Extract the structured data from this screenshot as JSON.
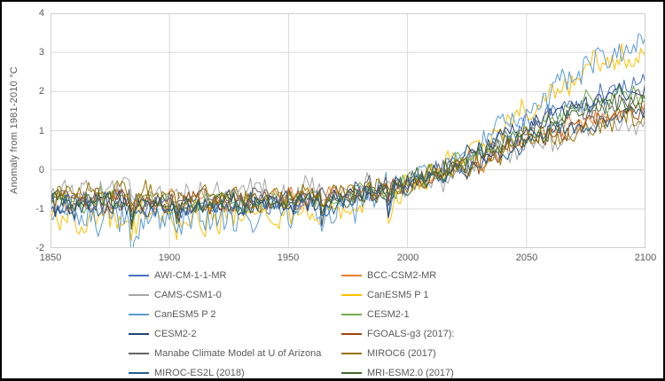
{
  "chart_data": {
    "type": "line",
    "title": "",
    "xlabel": "",
    "ylabel": "Anomaly from 1981-2010 °C",
    "x_range": [
      1850,
      2100
    ],
    "y_range": [
      -2,
      4
    ],
    "x_ticks": [
      "1850",
      "1900",
      "1950",
      "2000",
      "2050",
      "2100"
    ],
    "y_ticks": [
      "4",
      "3",
      "2",
      "1",
      "0",
      "-1",
      "-2"
    ],
    "grid": true,
    "legend_position": "bottom, two columns",
    "axis_text_color": "#595959",
    "gridline_color": "#D9D9D9",
    "plot_border_color": "#D0CECE",
    "noise_seed": 1234,
    "volcanic_dips": [
      {
        "year": 1884,
        "depth": 0.5
      },
      {
        "year": 1903,
        "depth": 0.25
      },
      {
        "year": 1964,
        "depth": 0.3
      },
      {
        "year": 1992,
        "depth": 0.35
      }
    ],
    "series": [
      {
        "name": "AWI-CM-1-1-MR",
        "color": "#4472C4",
        "noise": 0.24,
        "vol": 1.0,
        "anchors": [
          [
            1850,
            -0.9
          ],
          [
            1900,
            -0.95
          ],
          [
            1950,
            -0.85
          ],
          [
            1970,
            -0.8
          ],
          [
            2000,
            -0.4
          ],
          [
            2025,
            0.3
          ],
          [
            2050,
            1.1
          ],
          [
            2075,
            1.8
          ],
          [
            2100,
            2.3
          ]
        ]
      },
      {
        "name": "BCC-CSM2-MR",
        "color": "#ED7D31",
        "noise": 0.22,
        "vol": 0.9,
        "anchors": [
          [
            1850,
            -0.8
          ],
          [
            1900,
            -0.85
          ],
          [
            1950,
            -0.75
          ],
          [
            1970,
            -0.7
          ],
          [
            2000,
            -0.4
          ],
          [
            2025,
            0.15
          ],
          [
            2050,
            0.8
          ],
          [
            2075,
            1.3
          ],
          [
            2100,
            1.6
          ]
        ]
      },
      {
        "name": "CAMS-CSM1-0",
        "color": "#A5A5A5",
        "noise": 0.26,
        "vol": 0.7,
        "anchors": [
          [
            1850,
            -0.55
          ],
          [
            1900,
            -0.6
          ],
          [
            1950,
            -0.55
          ],
          [
            1970,
            -0.55
          ],
          [
            2000,
            -0.35
          ],
          [
            2025,
            0.1
          ],
          [
            2050,
            0.6
          ],
          [
            2075,
            1.05
          ],
          [
            2100,
            1.3
          ]
        ]
      },
      {
        "name": "CanESM5 P 1",
        "color": "#FFC000",
        "noise": 0.28,
        "vol": 1.4,
        "anchors": [
          [
            1850,
            -1.2
          ],
          [
            1900,
            -1.25
          ],
          [
            1950,
            -1.1
          ],
          [
            1970,
            -1.0
          ],
          [
            2000,
            -0.45
          ],
          [
            2025,
            0.45
          ],
          [
            2050,
            1.45
          ],
          [
            2075,
            2.5
          ],
          [
            2100,
            3.2
          ]
        ]
      },
      {
        "name": "CanESM5 P 2",
        "color": "#5B9BD5",
        "noise": 0.3,
        "vol": 1.4,
        "anchors": [
          [
            1850,
            -1.15
          ],
          [
            1900,
            -1.3
          ],
          [
            1950,
            -1.1
          ],
          [
            1970,
            -1.05
          ],
          [
            2000,
            -0.4
          ],
          [
            2025,
            0.5
          ],
          [
            2050,
            1.55
          ],
          [
            2075,
            2.6
          ],
          [
            2100,
            3.3
          ]
        ]
      },
      {
        "name": "CESM2-1",
        "color": "#70AD47",
        "noise": 0.22,
        "vol": 1.0,
        "anchors": [
          [
            1850,
            -0.8
          ],
          [
            1900,
            -0.85
          ],
          [
            1950,
            -0.8
          ],
          [
            1970,
            -0.75
          ],
          [
            2000,
            -0.35
          ],
          [
            2025,
            0.25
          ],
          [
            2050,
            1.0
          ],
          [
            2075,
            1.65
          ],
          [
            2100,
            2.0
          ]
        ]
      },
      {
        "name": "CESM2-2",
        "color": "#264478",
        "noise": 0.23,
        "vol": 1.0,
        "anchors": [
          [
            1850,
            -0.85
          ],
          [
            1900,
            -0.9
          ],
          [
            1950,
            -0.82
          ],
          [
            1970,
            -0.78
          ],
          [
            2000,
            -0.35
          ],
          [
            2025,
            0.28
          ],
          [
            2050,
            1.05
          ],
          [
            2075,
            1.75
          ],
          [
            2100,
            2.15
          ]
        ]
      },
      {
        "name": "FGOALS-g3 (2017):",
        "color": "#9E480E",
        "noise": 0.22,
        "vol": 0.9,
        "anchors": [
          [
            1850,
            -0.75
          ],
          [
            1900,
            -0.8
          ],
          [
            1950,
            -0.75
          ],
          [
            1970,
            -0.7
          ],
          [
            2000,
            -0.45
          ],
          [
            2025,
            0.1
          ],
          [
            2050,
            0.7
          ],
          [
            2075,
            1.2
          ],
          [
            2100,
            1.45
          ]
        ]
      },
      {
        "name": "Manabe Climate Model at U of Arizona",
        "color": "#636363",
        "noise": 0.2,
        "vol": 0.4,
        "anchors": [
          [
            1850,
            -0.7
          ],
          [
            1900,
            -0.75
          ],
          [
            1950,
            -0.7
          ],
          [
            1970,
            -0.65
          ],
          [
            2000,
            -0.3
          ],
          [
            2025,
            0.2
          ],
          [
            2050,
            0.9
          ],
          [
            2075,
            1.5
          ],
          [
            2100,
            1.85
          ]
        ]
      },
      {
        "name": "MIROC6 (2017)",
        "color": "#997300",
        "noise": 0.24,
        "vol": 0.8,
        "anchors": [
          [
            1850,
            -0.6
          ],
          [
            1900,
            -0.68
          ],
          [
            1950,
            -0.65
          ],
          [
            1970,
            -0.62
          ],
          [
            2000,
            -0.35
          ],
          [
            2025,
            0.1
          ],
          [
            2050,
            0.65
          ],
          [
            2075,
            1.15
          ],
          [
            2100,
            1.45
          ]
        ]
      },
      {
        "name": "MIROC-ES2L (2018)",
        "color": "#255E91",
        "noise": 0.2,
        "vol": 0.9,
        "anchors": [
          [
            1850,
            -0.9
          ],
          [
            1900,
            -0.95
          ],
          [
            1950,
            -0.85
          ],
          [
            1970,
            -0.8
          ],
          [
            2000,
            -0.4
          ],
          [
            2025,
            0.1
          ],
          [
            2050,
            0.7
          ],
          [
            2075,
            1.25
          ],
          [
            2100,
            1.55
          ]
        ]
      },
      {
        "name": "MRI-ESM2.0 (2017)",
        "color": "#43682B",
        "noise": 0.21,
        "vol": 0.9,
        "anchors": [
          [
            1850,
            -0.8
          ],
          [
            1900,
            -0.85
          ],
          [
            1950,
            -0.8
          ],
          [
            1970,
            -0.75
          ],
          [
            2000,
            -0.35
          ],
          [
            2025,
            0.15
          ],
          [
            2050,
            0.85
          ],
          [
            2075,
            1.45
          ],
          [
            2100,
            1.8
          ]
        ]
      }
    ]
  }
}
